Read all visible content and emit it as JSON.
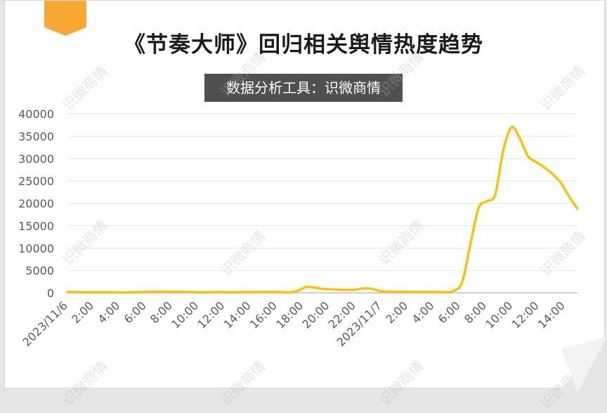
{
  "header": {
    "title": "《节奏大师》回归相关舆情热度趋势",
    "subtitle": "数据分析工具：识微商情"
  },
  "watermark": {
    "text": "识微商情"
  },
  "colors": {
    "line": "#FDC010",
    "accent_tab": "#F8A935",
    "grid": "#e6e6e6",
    "axis": "#bfbfbf",
    "text": "#595959",
    "subtitle_bg": "#505050"
  },
  "chart_data": {
    "type": "line",
    "title": "《节奏大师》回归相关舆情热度趋势",
    "xlabel": "",
    "ylabel": "",
    "ylim": [
      0,
      40000
    ],
    "yticks": [
      0,
      5000,
      10000,
      15000,
      20000,
      25000,
      30000,
      35000,
      40000
    ],
    "grid": true,
    "legend": "none",
    "x_tick_labels": [
      "2023/11/6",
      "2:00",
      "4:00",
      "6:00",
      "8:00",
      "10:00",
      "12:00",
      "14:00",
      "16:00",
      "18:00",
      "20:00",
      "22:00",
      "2023/11/7",
      "2:00",
      "4:00",
      "6:00",
      "8:00",
      "10:00",
      "12:00",
      "14:00"
    ],
    "series": [
      {
        "values": [
          200,
          180,
          150,
          140,
          130,
          120,
          110,
          100,
          130,
          180,
          250,
          290,
          260,
          250,
          240,
          180,
          130,
          160,
          170,
          150,
          140,
          150,
          160,
          170,
          180,
          200,
          180,
          120,
          500,
          1300,
          1200,
          900,
          800,
          700,
          650,
          700,
          1000,
          900,
          400,
          300,
          250,
          220,
          200,
          190,
          180,
          170,
          160,
          500,
          2500,
          11000,
          19000,
          20500,
          22000,
          32000,
          37000,
          34500,
          30500,
          29200,
          28000,
          26500,
          24500,
          21500,
          18800
        ]
      }
    ]
  }
}
